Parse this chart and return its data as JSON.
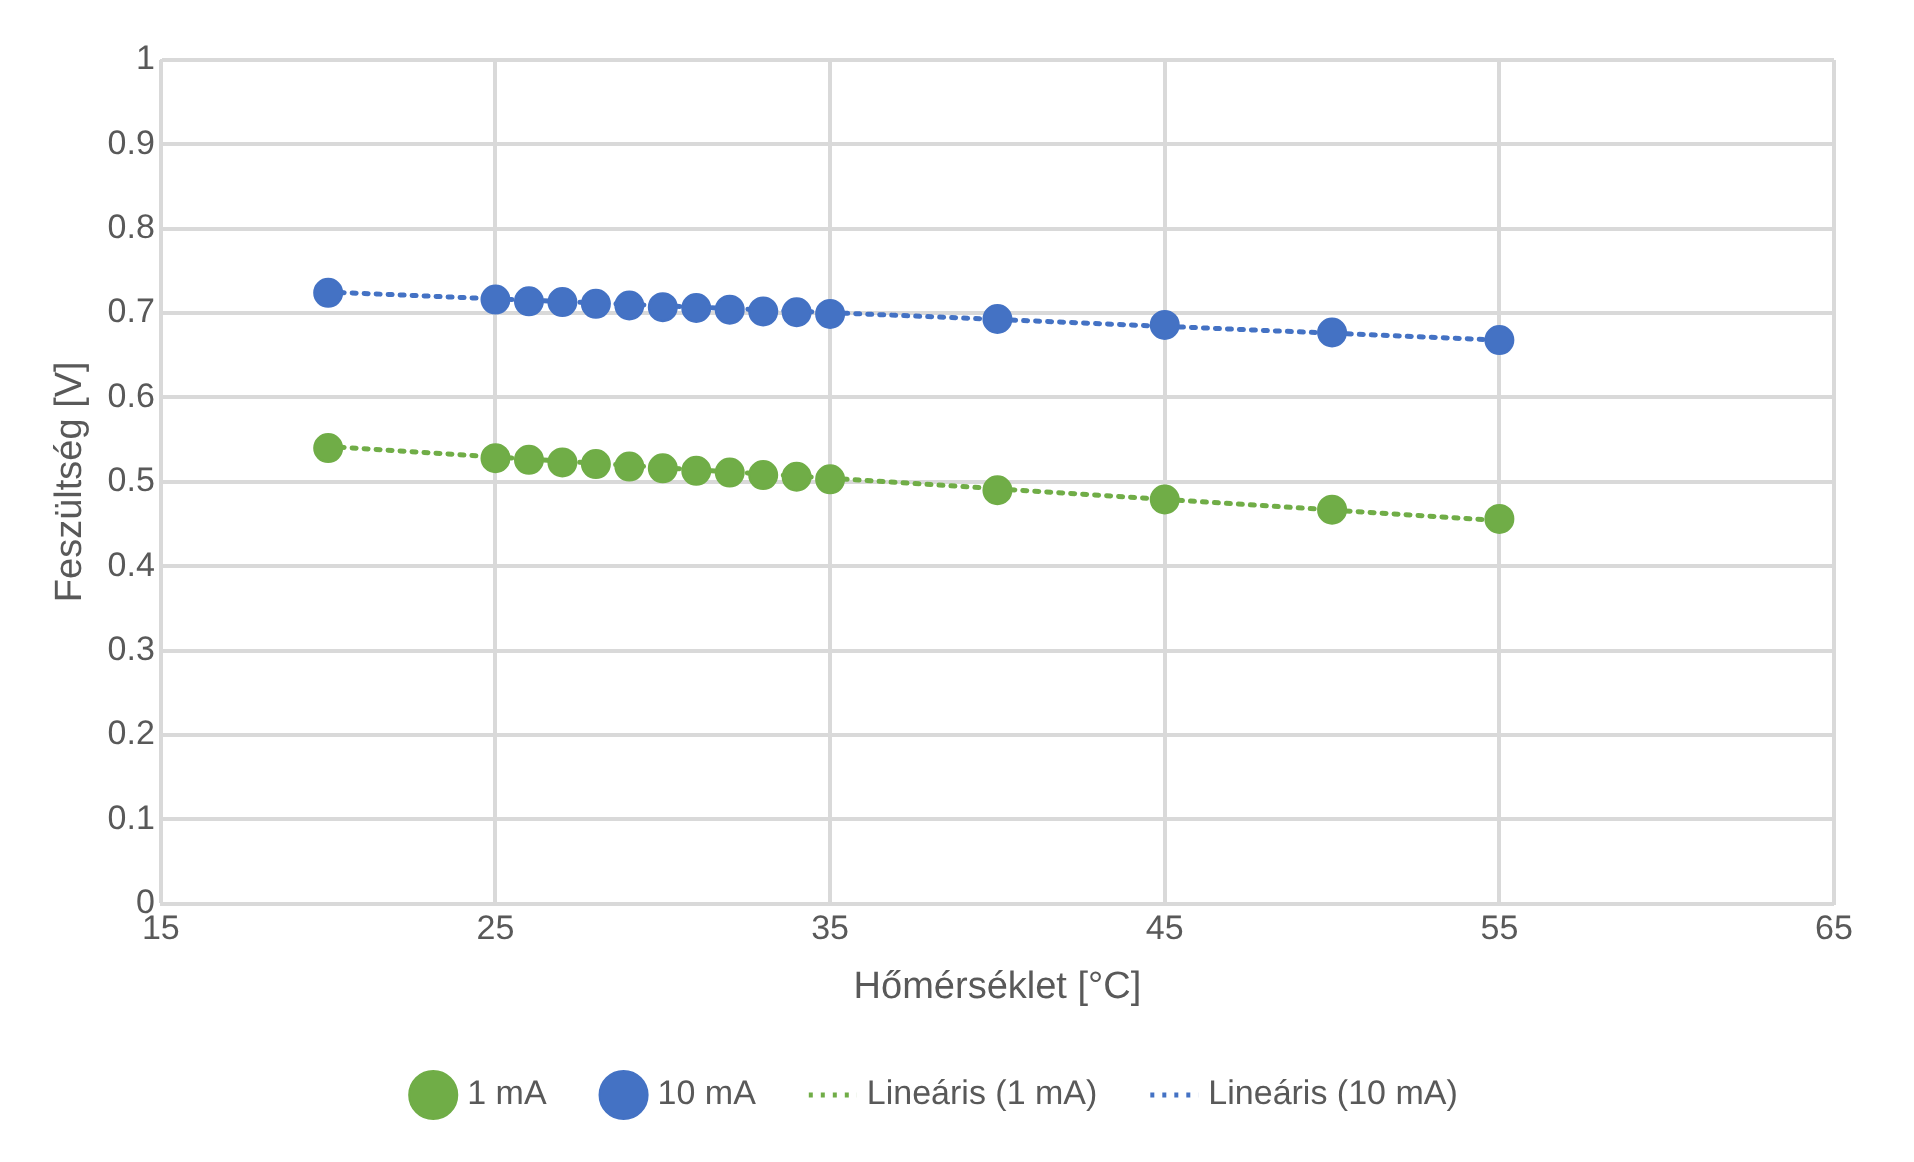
{
  "chart_data": {
    "type": "scatter",
    "xlabel": "Hőmérséklet [°C]",
    "ylabel": "Feszültség [V]",
    "xlim": [
      15,
      65
    ],
    "xticks": [
      15,
      25,
      35,
      45,
      55,
      65
    ],
    "ylim": [
      0,
      1
    ],
    "yticks": [
      0,
      0.1,
      0.2,
      0.3,
      0.4,
      0.5,
      0.6,
      0.7,
      0.8,
      0.9,
      1
    ],
    "grid": true,
    "legend": "bottom",
    "marker": "circle",
    "series": [
      {
        "name": "1 mA",
        "color": "#70ad47",
        "x": [
          20,
          25,
          26,
          27,
          28,
          29,
          30,
          31,
          32,
          33,
          34,
          35,
          40,
          45,
          50,
          55
        ],
        "values": [
          0.54,
          0.528,
          0.526,
          0.523,
          0.521,
          0.518,
          0.516,
          0.513,
          0.511,
          0.508,
          0.506,
          0.503,
          0.49,
          0.479,
          0.467,
          0.456
        ]
      },
      {
        "name": "10 mA",
        "color": "#4472c4",
        "x": [
          20,
          25,
          26,
          27,
          28,
          29,
          30,
          31,
          32,
          33,
          34,
          35,
          40,
          45,
          50,
          55
        ],
        "values": [
          0.724,
          0.716,
          0.714,
          0.713,
          0.711,
          0.709,
          0.707,
          0.706,
          0.704,
          0.702,
          0.701,
          0.699,
          0.693,
          0.686,
          0.677,
          0.668
        ]
      },
      {
        "name": "Lineáris (1 mA)",
        "type": "line",
        "marker": "none",
        "line_style": "dotted",
        "color": "#70ad47",
        "x": [
          20,
          55
        ],
        "values": [
          0.542,
          0.454
        ]
      },
      {
        "name": "Lineáris (10 mA)",
        "type": "line",
        "marker": "none",
        "line_style": "dotted",
        "color": "#4472c4",
        "x": [
          20,
          55
        ],
        "values": [
          0.725,
          0.668
        ]
      }
    ]
  }
}
